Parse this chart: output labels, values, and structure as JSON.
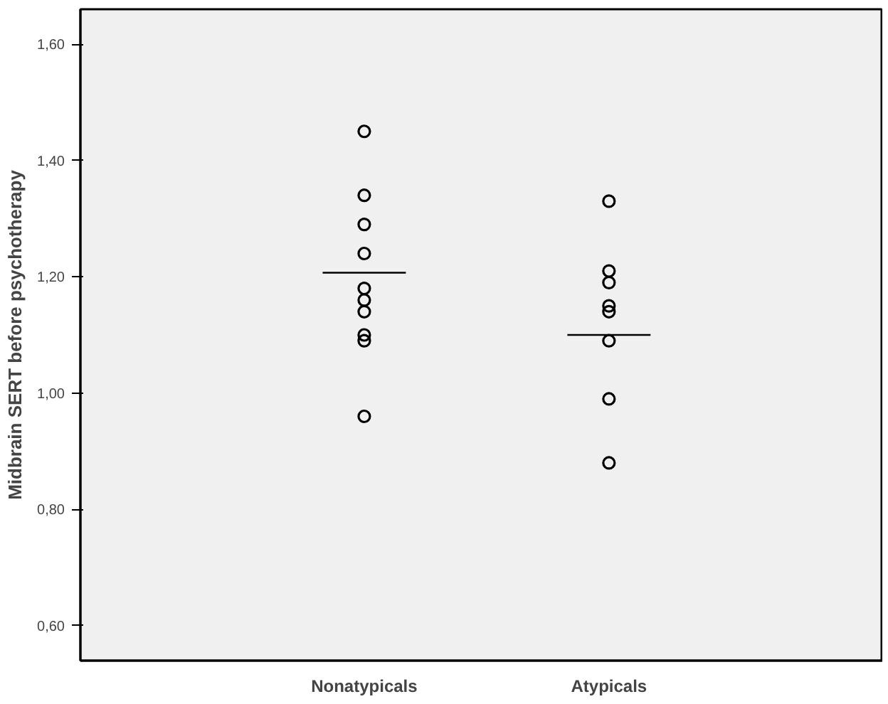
{
  "chart_data": {
    "type": "scatter",
    "ylabel": "Midbrain SERT before psychotherapy",
    "categories": [
      "Nonatypicals",
      "Atypicals"
    ],
    "ylim": [
      0.54,
      1.66
    ],
    "yticks": [
      {
        "value": 0.6,
        "label": "0,60"
      },
      {
        "value": 0.8,
        "label": "0,80"
      },
      {
        "value": 1.0,
        "label": "1,00"
      },
      {
        "value": 1.2,
        "label": "1,20"
      },
      {
        "value": 1.4,
        "label": "1,40"
      },
      {
        "value": 1.6,
        "label": "1,60"
      }
    ],
    "grid": false,
    "marker": "circle",
    "series": [
      {
        "color": "#000000",
        "x": [
          "Nonatypicals",
          "Nonatypicals",
          "Nonatypicals",
          "Nonatypicals",
          "Nonatypicals",
          "Nonatypicals",
          "Nonatypicals",
          "Nonatypicals",
          "Nonatypicals",
          "Nonatypicals"
        ],
        "values": [
          1.45,
          1.34,
          1.29,
          1.24,
          1.18,
          1.16,
          1.14,
          1.1,
          1.09,
          0.96
        ]
      },
      {
        "color": "#000000",
        "x": [
          "Atypicals",
          "Atypicals",
          "Atypicals",
          "Atypicals",
          "Atypicals",
          "Atypicals",
          "Atypicals",
          "Atypicals"
        ],
        "values": [
          1.33,
          1.21,
          1.19,
          1.15,
          1.14,
          1.09,
          0.99,
          0.88
        ]
      }
    ],
    "ref_lines": [
      {
        "axis": "y",
        "value": 1.207,
        "color": "#000000"
      },
      {
        "axis": "y",
        "value": 1.1,
        "color": "#000000"
      }
    ]
  }
}
